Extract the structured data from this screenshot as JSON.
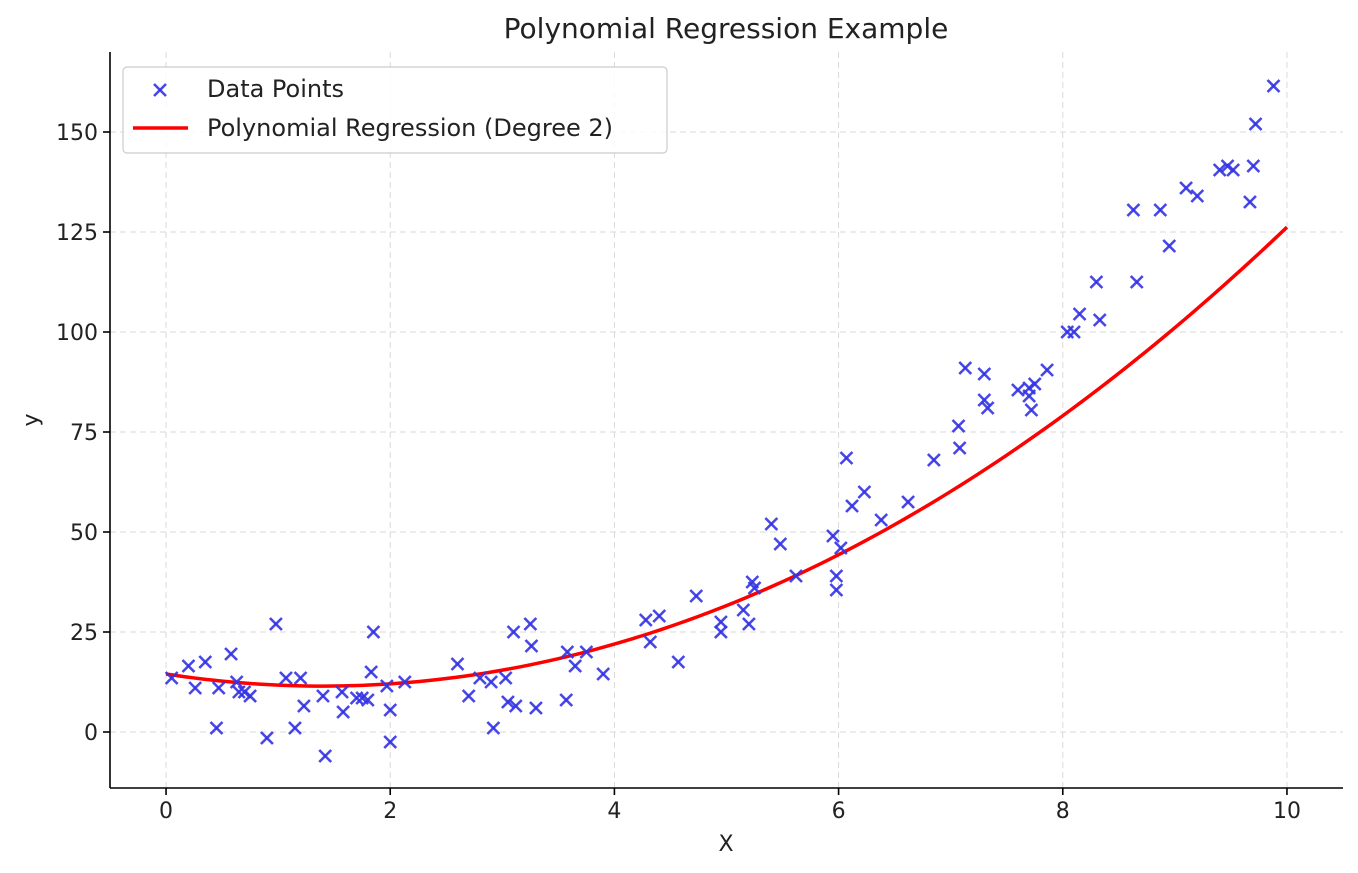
{
  "chart_data": {
    "type": "scatter",
    "title": "Polynomial Regression Example",
    "xlabel": "X",
    "ylabel": "y",
    "xlim": [
      -0.5,
      10.5
    ],
    "ylim": [
      -14,
      170
    ],
    "xticks": [
      0,
      2,
      4,
      6,
      8,
      10
    ],
    "yticks": [
      0,
      25,
      50,
      75,
      100,
      125,
      150
    ],
    "grid": true,
    "legend_position": "top-left",
    "legend": [
      "Data Points",
      "Polynomial Regression (Degree 2)"
    ],
    "colors": {
      "points": "#3333e6",
      "line": "#ff0000"
    },
    "series": [
      {
        "name": "Data Points",
        "type": "scatter",
        "marker": "x",
        "points": [
          [
            0.05,
            13.5
          ],
          [
            0.2,
            16.5
          ],
          [
            0.26,
            11
          ],
          [
            0.35,
            17.5
          ],
          [
            0.45,
            1
          ],
          [
            0.47,
            11
          ],
          [
            0.58,
            19.5
          ],
          [
            0.63,
            12.5
          ],
          [
            0.65,
            10
          ],
          [
            0.7,
            10
          ],
          [
            0.75,
            9
          ],
          [
            0.9,
            -1.5
          ],
          [
            0.98,
            27
          ],
          [
            1.07,
            13.5
          ],
          [
            1.15,
            1
          ],
          [
            1.2,
            13.5
          ],
          [
            1.23,
            6.5
          ],
          [
            1.4,
            9
          ],
          [
            1.42,
            -6
          ],
          [
            1.57,
            10
          ],
          [
            1.58,
            5
          ],
          [
            1.7,
            8.5
          ],
          [
            1.75,
            8.5
          ],
          [
            1.8,
            8
          ],
          [
            1.83,
            15
          ],
          [
            1.85,
            25
          ],
          [
            1.97,
            11.5
          ],
          [
            2.0,
            -2.5
          ],
          [
            2.0,
            5.5
          ],
          [
            2.13,
            12.5
          ],
          [
            2.6,
            17
          ],
          [
            2.7,
            9
          ],
          [
            2.8,
            13.5
          ],
          [
            2.9,
            12.5
          ],
          [
            2.92,
            1
          ],
          [
            3.03,
            13.5
          ],
          [
            3.05,
            7.5
          ],
          [
            3.1,
            25
          ],
          [
            3.12,
            6.5
          ],
          [
            3.25,
            27
          ],
          [
            3.26,
            21.5
          ],
          [
            3.3,
            6
          ],
          [
            3.57,
            8
          ],
          [
            3.58,
            20
          ],
          [
            3.65,
            16.5
          ],
          [
            3.75,
            20
          ],
          [
            3.9,
            14.5
          ],
          [
            4.28,
            28
          ],
          [
            4.32,
            22.5
          ],
          [
            4.4,
            29
          ],
          [
            4.57,
            17.5
          ],
          [
            4.73,
            34
          ],
          [
            4.95,
            27.5
          ],
          [
            4.95,
            25
          ],
          [
            5.15,
            30.5
          ],
          [
            5.2,
            27
          ],
          [
            5.23,
            37.5
          ],
          [
            5.25,
            36
          ],
          [
            5.4,
            52
          ],
          [
            5.48,
            47
          ],
          [
            5.62,
            39
          ],
          [
            5.95,
            49
          ],
          [
            5.98,
            39
          ],
          [
            5.98,
            35.5
          ],
          [
            6.02,
            46
          ],
          [
            6.07,
            68.5
          ],
          [
            6.12,
            56.5
          ],
          [
            6.23,
            60
          ],
          [
            6.38,
            53
          ],
          [
            6.62,
            57.5
          ],
          [
            6.85,
            68
          ],
          [
            7.07,
            76.5
          ],
          [
            7.08,
            71
          ],
          [
            7.13,
            91
          ],
          [
            7.3,
            83
          ],
          [
            7.3,
            89.5
          ],
          [
            7.33,
            81
          ],
          [
            7.6,
            85.5
          ],
          [
            7.7,
            86
          ],
          [
            7.7,
            84
          ],
          [
            7.72,
            80.5
          ],
          [
            7.75,
            87
          ],
          [
            7.86,
            90.5
          ],
          [
            8.04,
            100
          ],
          [
            8.1,
            100
          ],
          [
            8.15,
            104.5
          ],
          [
            8.3,
            112.5
          ],
          [
            8.33,
            103
          ],
          [
            8.63,
            130.5
          ],
          [
            8.66,
            112.5
          ],
          [
            8.87,
            130.5
          ],
          [
            8.95,
            121.5
          ],
          [
            9.1,
            136
          ],
          [
            9.2,
            134
          ],
          [
            9.4,
            140.5
          ],
          [
            9.47,
            141.5
          ],
          [
            9.52,
            140.5
          ],
          [
            9.67,
            132.5
          ],
          [
            9.7,
            141.5
          ],
          [
            9.72,
            152
          ],
          [
            9.88,
            161.5
          ]
        ]
      },
      {
        "name": "Polynomial Regression (Degree 2)",
        "type": "line",
        "model": {
          "a": 1.55,
          "b": -4.33,
          "c": 14.5
        },
        "x_range": [
          0,
          10
        ]
      }
    ]
  }
}
